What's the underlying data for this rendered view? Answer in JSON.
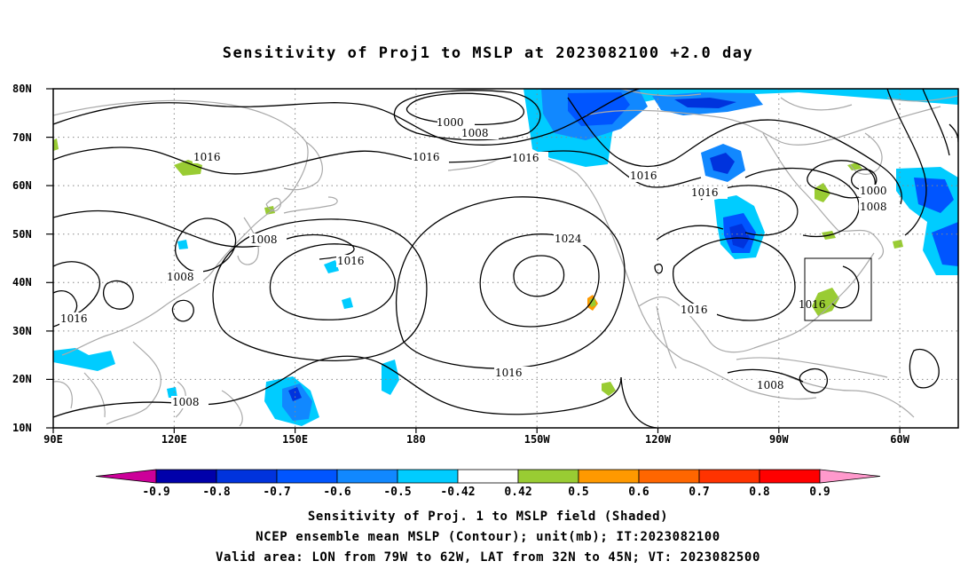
{
  "title": "Sensitivity of Proj1 to MSLP at 2023082100 +2.0 day",
  "axes": {
    "lat_labels": [
      "80N",
      "70N",
      "60N",
      "50N",
      "40N",
      "30N",
      "20N",
      "10N"
    ],
    "lon_labels": [
      "90E",
      "120E",
      "150E",
      "180",
      "150W",
      "120W",
      "90W",
      "60W"
    ]
  },
  "contour_labels": [
    "1000",
    "1008",
    "1016",
    "1016",
    "1016",
    "1024",
    "1016",
    "1016",
    "1016",
    "1000",
    "1008",
    "1008",
    "1008",
    "1016",
    "1016",
    "1016",
    "1008",
    "1008"
  ],
  "colorbar": {
    "labels": [
      "-0.9",
      "-0.8",
      "-0.7",
      "-0.6",
      "-0.5",
      "-0.42",
      "0.42",
      "0.5",
      "0.6",
      "0.7",
      "0.8",
      "0.9"
    ],
    "colors": [
      "#cc0099",
      "#0000aa",
      "#0033dd",
      "#0055ff",
      "#1188ff",
      "#00ccff",
      "#ffffff",
      "#99cc33",
      "#ff9900",
      "#ff6600",
      "#ff3300",
      "#ff0000",
      "#ff99cc"
    ]
  },
  "captions": [
    "Sensitivity of Proj. 1 to MSLP field (Shaded)",
    "NCEP ensemble mean MSLP (Contour); unit(mb); IT:2023082100",
    "Valid area: LON from 79W to 62W, LAT from 32N to 45N; VT: 2023082500"
  ]
}
